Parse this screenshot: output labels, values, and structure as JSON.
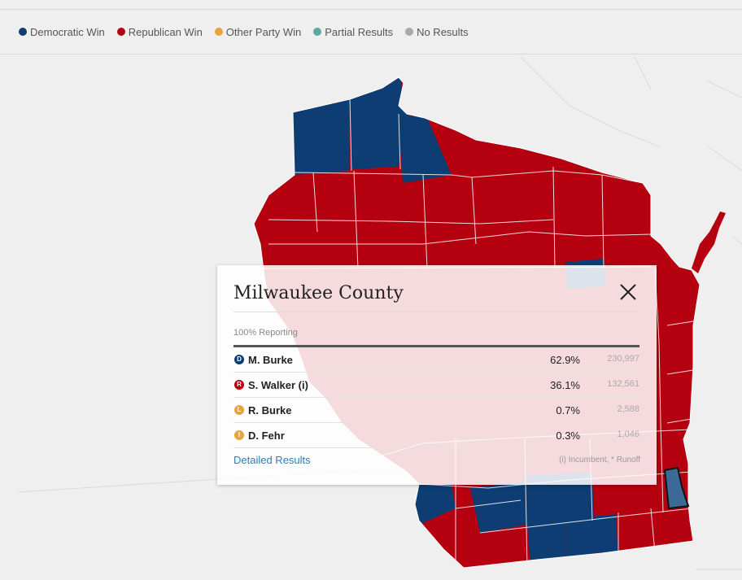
{
  "legend": {
    "items": [
      {
        "label": "Democratic Win",
        "color": "#0d3d73"
      },
      {
        "label": "Republican Win",
        "color": "#b5000f"
      },
      {
        "label": "Other Party Win",
        "color": "#e8a33d"
      },
      {
        "label": "Partial Results",
        "color": "#5fa8a0"
      },
      {
        "label": "No Results",
        "color": "#aaaaaa"
      }
    ]
  },
  "colors": {
    "dem": "#0d3d73",
    "rep": "#b5000f",
    "highlight": "#3b6a96",
    "background": "#efefef"
  },
  "map": {
    "state": "Wisconsin",
    "selected_county": "Milwaukee County"
  },
  "popup": {
    "title": "Milwaukee County",
    "reporting": "100% Reporting",
    "candidates": [
      {
        "badge": "D",
        "badge_color": "#0d3d73",
        "name": "M. Burke",
        "pct": "62.9%",
        "votes": "230,997"
      },
      {
        "badge": "R",
        "badge_color": "#b5000f",
        "name": "S. Walker (i)",
        "pct": "36.1%",
        "votes": "132,561"
      },
      {
        "badge": "L",
        "badge_color": "#e8a33d",
        "name": "R. Burke",
        "pct": "0.7%",
        "votes": "2,588"
      },
      {
        "badge": "I",
        "badge_color": "#e8a33d",
        "name": "D. Fehr",
        "pct": "0.3%",
        "votes": "1,046"
      }
    ],
    "detail_link": "Detailed Results",
    "footnote": "(i) Incumbent, * Runoff"
  }
}
